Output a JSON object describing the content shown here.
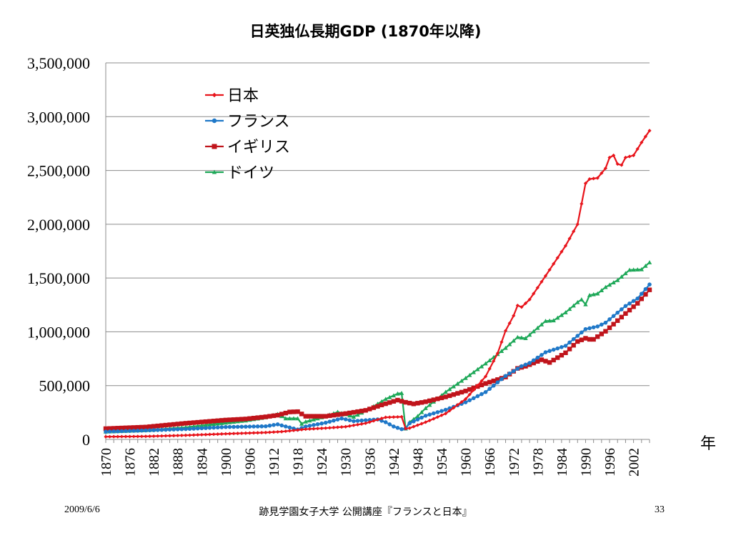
{
  "title": "日英独仏長期GDP (1870年以降)",
  "footer": {
    "date": "2009/6/6",
    "center": "跡見学園女子大学 公開講座『フランスと日本』",
    "page": "33"
  },
  "colors": {
    "日本": "#e8141b",
    "フランス": "#1f78c8",
    "イギリス": "#c0141b",
    "ドイツ": "#1ea858",
    "grid": "#8c8c8c"
  },
  "chart_data": {
    "type": "line",
    "title": "日英独仏長期GDP (1870年以降)",
    "xlabel": "年",
    "ylabel": "",
    "xlim": [
      1870,
      2006
    ],
    "ylim": [
      0,
      3500000
    ],
    "grid": "horizontal",
    "legend_placement": "top-left inside plot",
    "x_tick_labels": [
      "1870",
      "1876",
      "1882",
      "1888",
      "1894",
      "1900",
      "1906",
      "1912",
      "1918",
      "1924",
      "1930",
      "1936",
      "1942",
      "1948",
      "1954",
      "1960",
      "1966",
      "1972",
      "1978",
      "1984",
      "1990",
      "1996",
      "2002"
    ],
    "y_tick_labels": [
      "0",
      "500,000",
      "1,000,000",
      "1,500,000",
      "2,000,000",
      "2,500,000",
      "3,000,000",
      "3,500,000"
    ],
    "series": [
      {
        "name": "日本",
        "marker": "diamond",
        "points": [
          [
            1870,
            25000
          ],
          [
            1880,
            28000
          ],
          [
            1890,
            38000
          ],
          [
            1900,
            52000
          ],
          [
            1910,
            64000
          ],
          [
            1914,
            72000
          ],
          [
            1920,
            95000
          ],
          [
            1925,
            105000
          ],
          [
            1930,
            118000
          ],
          [
            1935,
            150000
          ],
          [
            1939,
            195000
          ],
          [
            1940,
            205000
          ],
          [
            1944,
            210000
          ],
          [
            1945,
            100000
          ],
          [
            1946,
            105000
          ],
          [
            1950,
            160000
          ],
          [
            1955,
            240000
          ],
          [
            1960,
            375000
          ],
          [
            1965,
            585000
          ],
          [
            1968,
            800000
          ],
          [
            1970,
            1010000
          ],
          [
            1972,
            1150000
          ],
          [
            1973,
            1245000
          ],
          [
            1974,
            1230000
          ],
          [
            1976,
            1300000
          ],
          [
            1980,
            1520000
          ],
          [
            1985,
            1800000
          ],
          [
            1988,
            2000000
          ],
          [
            1990,
            2380000
          ],
          [
            1991,
            2420000
          ],
          [
            1993,
            2430000
          ],
          [
            1995,
            2520000
          ],
          [
            1996,
            2620000
          ],
          [
            1997,
            2640000
          ],
          [
            1998,
            2560000
          ],
          [
            1999,
            2550000
          ],
          [
            2000,
            2620000
          ],
          [
            2002,
            2640000
          ],
          [
            2004,
            2760000
          ],
          [
            2006,
            2870000
          ]
        ]
      },
      {
        "name": "フランス",
        "marker": "circle",
        "points": [
          [
            1870,
            72000
          ],
          [
            1880,
            83000
          ],
          [
            1890,
            96000
          ],
          [
            1900,
            115000
          ],
          [
            1910,
            122000
          ],
          [
            1913,
            140000
          ],
          [
            1915,
            120000
          ],
          [
            1918,
            92000
          ],
          [
            1920,
            120000
          ],
          [
            1925,
            155000
          ],
          [
            1929,
            195000
          ],
          [
            1932,
            170000
          ],
          [
            1938,
            186000
          ],
          [
            1940,
            160000
          ],
          [
            1942,
            120000
          ],
          [
            1944,
            95000
          ],
          [
            1945,
            102000
          ],
          [
            1946,
            150000
          ],
          [
            1950,
            220000
          ],
          [
            1955,
            275000
          ],
          [
            1960,
            345000
          ],
          [
            1965,
            440000
          ],
          [
            1970,
            590000
          ],
          [
            1974,
            680000
          ],
          [
            1976,
            710000
          ],
          [
            1980,
            810000
          ],
          [
            1985,
            870000
          ],
          [
            1990,
            1025000
          ],
          [
            1993,
            1050000
          ],
          [
            1995,
            1085000
          ],
          [
            2000,
            1240000
          ],
          [
            2003,
            1310000
          ],
          [
            2006,
            1440000
          ]
        ]
      },
      {
        "name": "イギリス",
        "marker": "square",
        "points": [
          [
            1870,
            100000
          ],
          [
            1880,
            115000
          ],
          [
            1890,
            150000
          ],
          [
            1900,
            180000
          ],
          [
            1905,
            190000
          ],
          [
            1910,
            210000
          ],
          [
            1913,
            225000
          ],
          [
            1916,
            255000
          ],
          [
            1918,
            258000
          ],
          [
            1920,
            215000
          ],
          [
            1925,
            215000
          ],
          [
            1930,
            240000
          ],
          [
            1935,
            270000
          ],
          [
            1939,
            320000
          ],
          [
            1943,
            365000
          ],
          [
            1945,
            345000
          ],
          [
            1947,
            330000
          ],
          [
            1950,
            350000
          ],
          [
            1955,
            395000
          ],
          [
            1960,
            450000
          ],
          [
            1965,
            520000
          ],
          [
            1970,
            580000
          ],
          [
            1973,
            660000
          ],
          [
            1975,
            680000
          ],
          [
            1979,
            740000
          ],
          [
            1981,
            715000
          ],
          [
            1985,
            805000
          ],
          [
            1988,
            910000
          ],
          [
            1990,
            940000
          ],
          [
            1991,
            930000
          ],
          [
            1992,
            930000
          ],
          [
            1995,
            1005000
          ],
          [
            2000,
            1170000
          ],
          [
            2003,
            1265000
          ],
          [
            2006,
            1390000
          ]
        ]
      },
      {
        "name": "ドイツ",
        "marker": "triangle",
        "points": [
          [
            1870,
            72000
          ],
          [
            1880,
            85000
          ],
          [
            1890,
            112000
          ],
          [
            1900,
            155000
          ],
          [
            1905,
            175000
          ],
          [
            1910,
            205000
          ],
          [
            1913,
            235000
          ],
          [
            1915,
            195000
          ],
          [
            1918,
            195000
          ],
          [
            1919,
            145000
          ],
          [
            1920,
            165000
          ],
          [
            1925,
            215000
          ],
          [
            1928,
            255000
          ],
          [
            1932,
            210000
          ],
          [
            1936,
            285000
          ],
          [
            1940,
            375000
          ],
          [
            1943,
            425000
          ],
          [
            1944,
            430000
          ],
          [
            1945,
            100000
          ],
          [
            1946,
            160000
          ],
          [
            1948,
            215000
          ],
          [
            1950,
            290000
          ],
          [
            1955,
            440000
          ],
          [
            1960,
            570000
          ],
          [
            1965,
            705000
          ],
          [
            1970,
            850000
          ],
          [
            1973,
            950000
          ],
          [
            1975,
            940000
          ],
          [
            1980,
            1100000
          ],
          [
            1982,
            1105000
          ],
          [
            1985,
            1180000
          ],
          [
            1988,
            1275000
          ],
          [
            1989,
            1300000
          ],
          [
            1990,
            1255000
          ],
          [
            1991,
            1340000
          ],
          [
            1993,
            1355000
          ],
          [
            1995,
            1415000
          ],
          [
            1998,
            1480000
          ],
          [
            2001,
            1575000
          ],
          [
            2004,
            1580000
          ],
          [
            2006,
            1645000
          ]
        ]
      }
    ]
  }
}
